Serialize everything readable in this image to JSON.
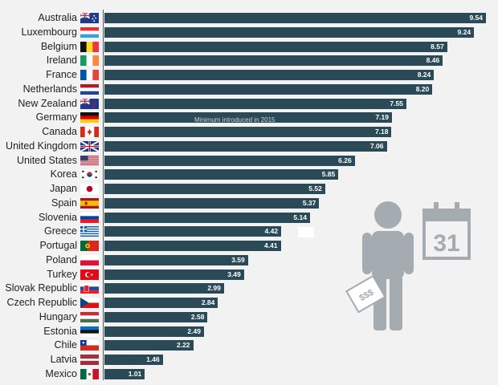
{
  "chart_data": {
    "type": "bar",
    "orientation": "horizontal",
    "title": "",
    "xlabel": "",
    "ylabel": "",
    "xlim": [
      0,
      9.54
    ],
    "categories": [
      "Australia",
      "Luxembourg",
      "Belgium",
      "Ireland",
      "France",
      "Netherlands",
      "New Zealand",
      "Germany",
      "Canada",
      "United Kingdom",
      "United States",
      "Korea",
      "Japan",
      "Spain",
      "Slovenia",
      "Greece",
      "Portugal",
      "Poland",
      "Turkey",
      "Slovak Republic",
      "Czech Republic",
      "Hungary",
      "Estonia",
      "Chile",
      "Latvia",
      "Mexico"
    ],
    "values": [
      9.54,
      9.24,
      8.57,
      8.46,
      8.24,
      8.2,
      7.55,
      7.19,
      7.18,
      7.06,
      6.26,
      5.85,
      5.52,
      5.37,
      5.14,
      4.42,
      4.41,
      3.59,
      3.49,
      2.99,
      2.84,
      2.58,
      2.49,
      2.22,
      1.46,
      1.01
    ],
    "value_labels": [
      "9.54",
      "9.24",
      "8.57",
      "8.46",
      "8.24",
      "8.20",
      "7.55",
      "7.19",
      "7.18",
      "7.06",
      "6.26",
      "5.85",
      "5.52",
      "5.37",
      "5.14",
      "4.42",
      "4.41",
      "3.59",
      "3.49",
      "2.99",
      "2.84",
      "2.58",
      "2.49",
      "2.22",
      "1.46",
      "1.01"
    ],
    "annotation": "Minimum introduced in 2015",
    "bar_color": "#2b4a57",
    "flags": [
      "au",
      "lu",
      "be",
      "ie",
      "fr",
      "nl",
      "nz",
      "de",
      "ca",
      "gb",
      "us",
      "kr",
      "jp",
      "es",
      "si",
      "gr",
      "pt",
      "pl",
      "tr",
      "sk",
      "cz",
      "hu",
      "ee",
      "cl",
      "lv",
      "mx"
    ]
  },
  "illustration": {
    "calendar_day": "31",
    "money_label": "$$$",
    "figure_color": "#a4acb1"
  }
}
